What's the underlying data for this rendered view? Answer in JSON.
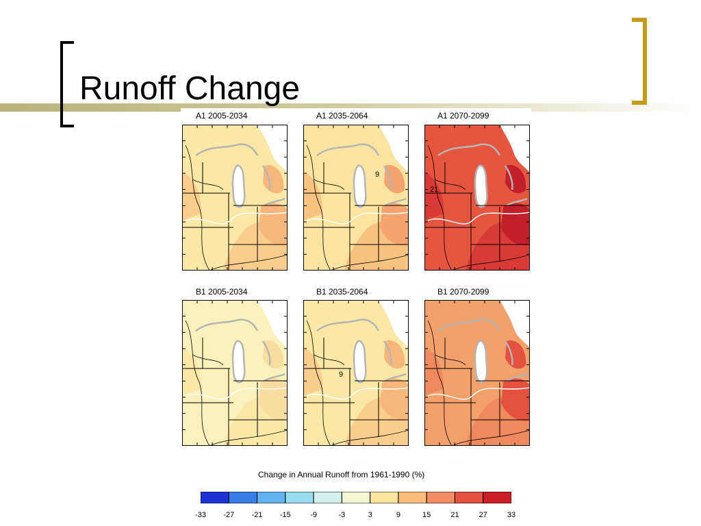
{
  "slide": {
    "title": "Runoff Change"
  },
  "panels": [
    {
      "id": "a1-early",
      "label": "A1 2005-2034",
      "level": 1,
      "contour_labels": []
    },
    {
      "id": "a1-mid",
      "label": "A1 2035-2064",
      "level": 2,
      "contour_labels": [
        "9"
      ]
    },
    {
      "id": "a1-late",
      "label": "A1 2070-2099",
      "level": 4,
      "contour_labels": [
        "21"
      ]
    },
    {
      "id": "b1-early",
      "label": "B1 2005-2034",
      "level": 0,
      "contour_labels": []
    },
    {
      "id": "b1-mid",
      "label": "B1 2035-2064",
      "level": 1,
      "contour_labels": [
        "9"
      ]
    },
    {
      "id": "b1-late",
      "label": "B1 2070-2099",
      "level": 3,
      "contour_labels": []
    }
  ],
  "colorbar": {
    "title": "Change in Annual Runoff from 1961-1990 (%)",
    "ticks": [
      "-33",
      "-27",
      "-21",
      "-15",
      "-9",
      "-3",
      "3",
      "9",
      "15",
      "21",
      "27",
      "33"
    ],
    "colors": [
      "#1f32d6",
      "#3a7ce8",
      "#63b4ee",
      "#97dcef",
      "#d4f1ee",
      "#f2f7cf",
      "#fbe59c",
      "#f9be7e",
      "#f48e62",
      "#e4513f",
      "#cc1f2a"
    ]
  },
  "palette": {
    "water": "#ffffff",
    "lake_outline": "#b5b5b5",
    "border": "#000000",
    "accent": "#c79a18"
  }
}
